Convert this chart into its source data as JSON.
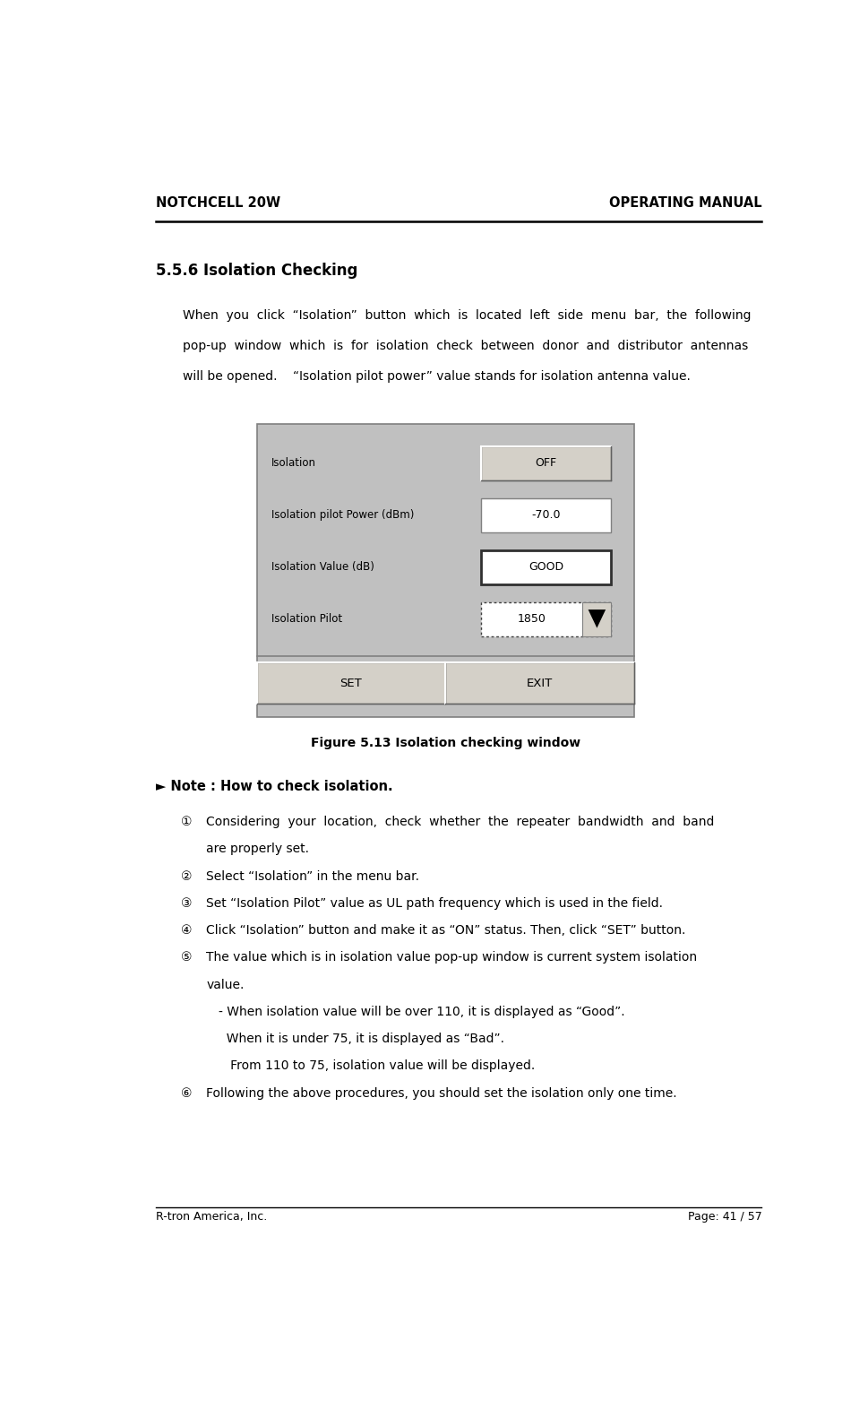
{
  "page_width": 9.7,
  "page_height": 15.72,
  "bg_color": "#ffffff",
  "header_left": "NOTCHCELL 20W",
  "header_right": "OPERATING MANUAL",
  "footer_left": "R-tron America, Inc.",
  "footer_right": "Page: 41 / 57",
  "section_title": "5.5.6 Isolation Checking",
  "body_text_lines": [
    "When  you  click  “Isolation”  button  which  is  located  left  side  menu  bar,  the  following",
    "pop-up  window  which  is  for  isolation  check  between  donor  and  distributor  antennas",
    "will be opened.    “Isolation pilot power” value stands for isolation antenna value."
  ],
  "figure_caption": "Figure 5.13 Isolation checking window",
  "note_title": "► Note : How to check isolation.",
  "note_items": [
    {
      "num": "①",
      "lines": [
        "Considering  your  location,  check  whether  the  repeater  bandwidth  and  band",
        "are properly set."
      ]
    },
    {
      "num": "②",
      "lines": [
        "Select “Isolation” in the menu bar."
      ]
    },
    {
      "num": "③",
      "lines": [
        "Set “Isolation Pilot” value as UL path frequency which is used in the field."
      ]
    },
    {
      "num": "④",
      "lines": [
        "Click “Isolation” button and make it as “ON” status. Then, click “SET” button."
      ]
    },
    {
      "num": "⑤",
      "lines": [
        "The value which is in isolation value pop-up window is current system isolation",
        "value.",
        "- When isolation value will be over 110, it is displayed as “Good”.",
        "  When it is under 75, it is displayed as “Bad”.",
        "   From 110 to 75, isolation value will be displayed."
      ]
    },
    {
      "num": "⑥",
      "lines": [
        "Following the above procedures, you should set the isolation only one time."
      ]
    }
  ],
  "dialog_rows": [
    {
      "label": "Isolation",
      "value": "OFF",
      "type": "button_raised"
    },
    {
      "label": "Isolation pilot Power (dBm)",
      "value": "-70.0",
      "type": "entry"
    },
    {
      "label": "Isolation Value (dB)",
      "value": "GOOD",
      "type": "button_raised_border"
    },
    {
      "label": "Isolation Pilot",
      "value": "1850",
      "type": "dropdown"
    }
  ],
  "dialog_buttons": [
    "SET",
    "EXIT"
  ],
  "dialog_bg": "#c0c0c0",
  "dialog_button_bg": "#d4d0c8",
  "dialog_entry_bg": "#ffffff"
}
